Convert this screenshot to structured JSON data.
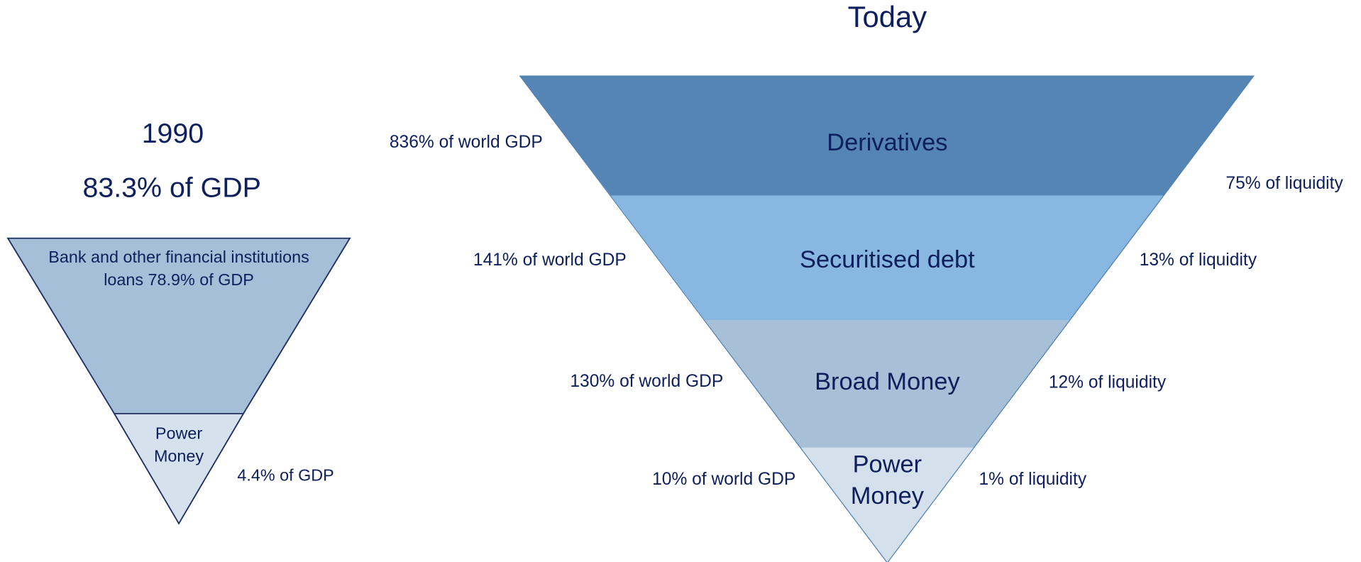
{
  "left": {
    "title": "1990",
    "subtitle": "83.3% of GDP",
    "layers": [
      {
        "label_lines": [
          "Bank and other financial institutions",
          "loans 78.9% of GDP"
        ]
      },
      {
        "label_lines": [
          "Power",
          "Money"
        ],
        "side_label": "4.4% of GDP"
      }
    ]
  },
  "right": {
    "title": "Today",
    "layers": [
      {
        "name_lines": [
          "Derivatives"
        ],
        "left_label": "836% of world GDP",
        "right_label": "75% of liquidity"
      },
      {
        "name_lines": [
          "Securitised debt"
        ],
        "left_label": "141% of world GDP",
        "right_label": "13% of liquidity"
      },
      {
        "name_lines": [
          "Broad Money"
        ],
        "left_label": "130% of world GDP",
        "right_label": "12% of liquidity"
      },
      {
        "name_lines": [
          "Power",
          "Money"
        ],
        "left_label": "10% of world GDP",
        "right_label": "1% of liquidity"
      }
    ]
  }
}
